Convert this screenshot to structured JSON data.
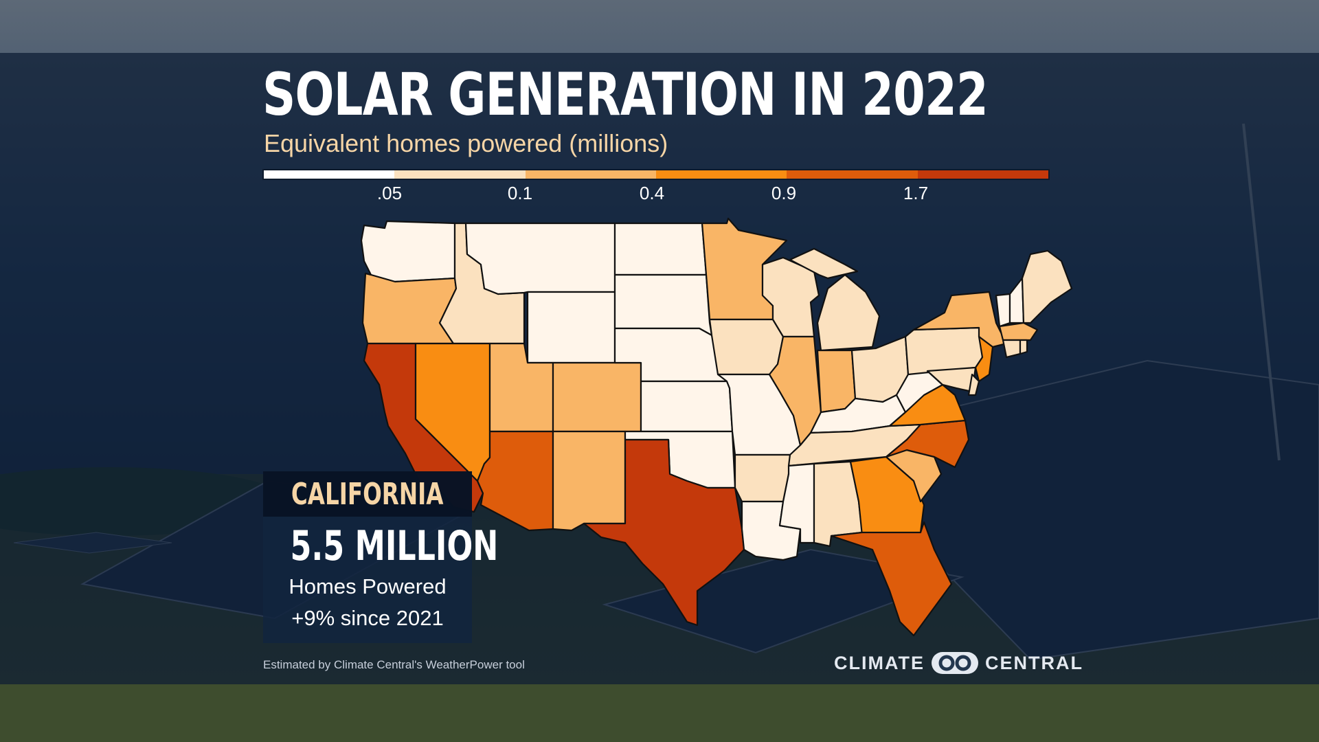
{
  "title": "SOLAR GENERATION IN 2022",
  "subtitle": "Equivalent homes powered (millions)",
  "legend": {
    "colors": [
      "#ffffff",
      "#fbe1bf",
      "#f9b566",
      "#f98d12",
      "#de5c0b",
      "#c4390b"
    ],
    "ticks": [
      ".05",
      "0.1",
      "0.4",
      "0.9",
      "1.7"
    ]
  },
  "map": {
    "region": "Contiguous United States",
    "fill_by_state": {
      "WA": 0,
      "OR": 2,
      "CA": 5,
      "ID": 1,
      "NV": 3,
      "MT": 0,
      "WY": 0,
      "UT": 2,
      "AZ": 4,
      "CO": 2,
      "NM": 2,
      "ND": 0,
      "SD": 0,
      "NE": 0,
      "KS": 0,
      "OK": 0,
      "TX": 5,
      "MN": 2,
      "IA": 1,
      "MO": 0,
      "AR": 1,
      "LA": 0,
      "WI": 1,
      "IL": 2,
      "MI": 1,
      "IN": 2,
      "OH": 1,
      "KY": 0,
      "TN": 1,
      "MS": 0,
      "AL": 1,
      "GA": 3,
      "FL": 4,
      "SC": 2,
      "NC": 4,
      "VA": 3,
      "WV": 0,
      "PA": 1,
      "NY": 2,
      "ME": 1,
      "VT": 0,
      "NH": 0,
      "MA": 2,
      "CT": 1,
      "RI": 1,
      "NJ": 3,
      "DE": 1,
      "MD": 1
    }
  },
  "callout": {
    "state": "CALIFORNIA",
    "value": "5.5 MILLION",
    "line1": "Homes Powered",
    "line2": "+9% since 2021"
  },
  "source": "Estimated by Climate Central's WeatherPower tool",
  "brand": {
    "left": "CLIMATE",
    "right": "CENTRAL"
  }
}
